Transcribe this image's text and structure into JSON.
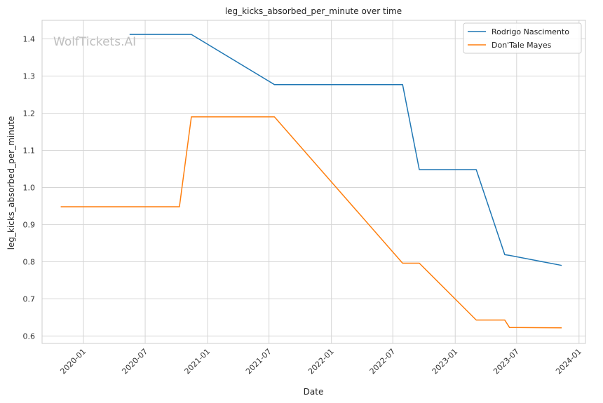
{
  "chart_data": {
    "type": "line",
    "title": "leg_kicks_absorbed_per_minute over time",
    "xlabel": "Date",
    "ylabel": "leg_kicks_absorbed_per_minute",
    "watermark": "WolfTickets.AI",
    "x_axis_type": "date",
    "xlim": [
      "2019-09-01",
      "2024-01-20"
    ],
    "ylim": [
      0.58,
      1.45
    ],
    "x_ticks": [
      {
        "date": "2020-01-01",
        "label": "2020-01"
      },
      {
        "date": "2020-07-01",
        "label": "2020-07"
      },
      {
        "date": "2021-01-01",
        "label": "2021-01"
      },
      {
        "date": "2021-07-01",
        "label": "2021-07"
      },
      {
        "date": "2022-01-01",
        "label": "2022-01"
      },
      {
        "date": "2022-07-01",
        "label": "2022-07"
      },
      {
        "date": "2023-01-01",
        "label": "2023-01"
      },
      {
        "date": "2023-07-01",
        "label": "2023-07"
      },
      {
        "date": "2024-01-01",
        "label": "2024-01"
      }
    ],
    "y_ticks": [
      0.6,
      0.7,
      0.8,
      0.9,
      1.0,
      1.1,
      1.2,
      1.3,
      1.4
    ],
    "grid": true,
    "legend_position": "top-right",
    "series": [
      {
        "name": "Rodrigo Nascimento",
        "color": "#1f77b4",
        "points": [
          {
            "x": "2020-05-16",
            "y": 1.412
          },
          {
            "x": "2020-11-14",
            "y": 1.412
          },
          {
            "x": "2021-07-17",
            "y": 1.277
          },
          {
            "x": "2022-07-30",
            "y": 1.277
          },
          {
            "x": "2022-09-17",
            "y": 1.048
          },
          {
            "x": "2023-03-04",
            "y": 1.048
          },
          {
            "x": "2023-05-27",
            "y": 0.819
          },
          {
            "x": "2023-06-10",
            "y": 0.817
          },
          {
            "x": "2023-11-11",
            "y": 0.79
          }
        ]
      },
      {
        "name": "Don'Tale Mayes",
        "color": "#ff7f0e",
        "points": [
          {
            "x": "2019-10-26",
            "y": 0.948
          },
          {
            "x": "2020-10-10",
            "y": 0.948
          },
          {
            "x": "2020-11-14",
            "y": 1.19
          },
          {
            "x": "2021-07-17",
            "y": 1.19
          },
          {
            "x": "2022-07-30",
            "y": 0.796
          },
          {
            "x": "2022-09-17",
            "y": 0.796
          },
          {
            "x": "2023-03-04",
            "y": 0.643
          },
          {
            "x": "2023-05-27",
            "y": 0.643
          },
          {
            "x": "2023-06-10",
            "y": 0.623
          },
          {
            "x": "2023-11-11",
            "y": 0.622
          }
        ]
      }
    ]
  }
}
